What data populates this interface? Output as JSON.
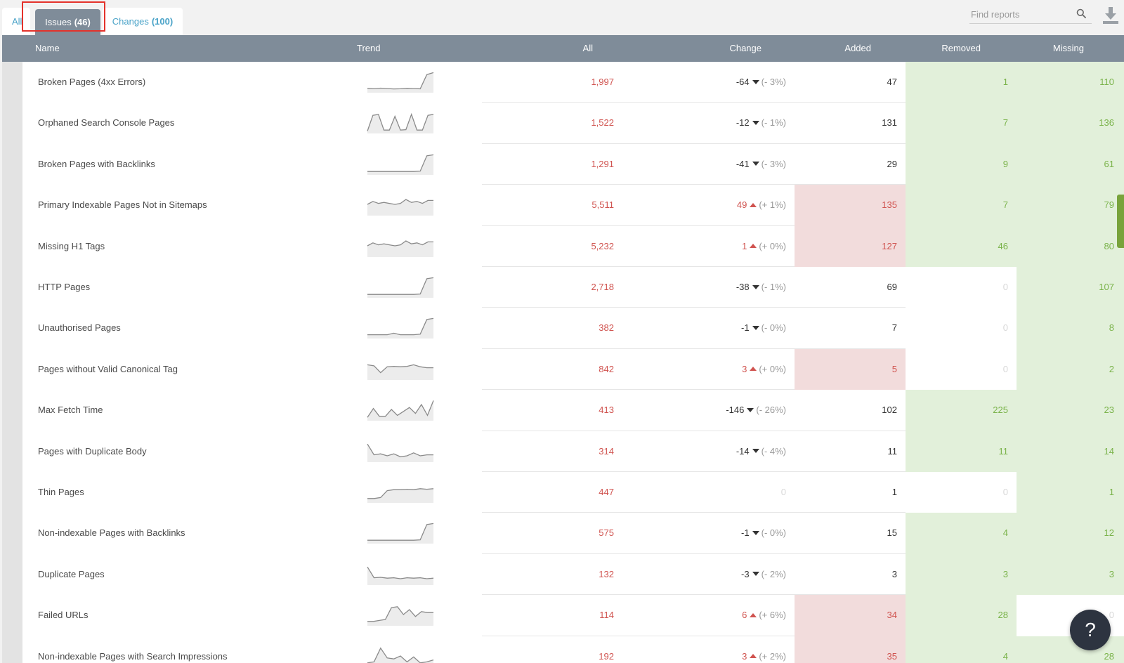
{
  "tabs": {
    "all_label": "All",
    "issues_label": "Issues",
    "issues_count": "(46)",
    "changes_label": "Changes",
    "changes_count": "(100)"
  },
  "search": {
    "placeholder": "Find reports",
    "icon": "search-icon"
  },
  "toolbar": {
    "download_icon": "download-icon"
  },
  "help": {
    "label": "?"
  },
  "colors": {
    "header_bg": "#7f8c99",
    "accent_blue": "#4aa3c8",
    "negative_red": "#d0534f",
    "red_highlight": "#f2dcdc",
    "positive_green": "#7ab34a",
    "green_highlight": "#e2f0da",
    "help_button": "#2d3440",
    "annotation_box": "#e4322b"
  },
  "table": {
    "columns": [
      "Name",
      "Trend",
      "All",
      "Change",
      "Added",
      "Removed",
      "Missing"
    ],
    "rows": [
      {
        "name": "Broken Pages (4xx Errors)",
        "all": "1,997",
        "change": "-64",
        "dir": "down",
        "pct": "(- 3%)",
        "added": "47",
        "removed": "1",
        "missing": "110",
        "hl_added": "none",
        "hl_removed": "green",
        "hl_missing": "green",
        "trend": [
          0.15,
          0.13,
          0.16,
          0.14,
          0.12,
          0.13,
          0.15,
          0.14,
          0.13,
          0.85,
          0.95
        ]
      },
      {
        "name": "Orphaned Search Console Pages",
        "all": "1,522",
        "change": "-12",
        "dir": "down",
        "pct": "(- 1%)",
        "added": "131",
        "removed": "7",
        "missing": "136",
        "hl_added": "none",
        "hl_removed": "green",
        "hl_missing": "green",
        "trend": [
          0.05,
          0.85,
          0.9,
          0.1,
          0.1,
          0.8,
          0.1,
          0.12,
          0.9,
          0.1,
          0.1,
          0.85,
          0.9
        ]
      },
      {
        "name": "Broken Pages with Backlinks",
        "all": "1,291",
        "change": "-41",
        "dir": "down",
        "pct": "(- 3%)",
        "added": "29",
        "removed": "9",
        "missing": "61",
        "hl_added": "none",
        "hl_removed": "green",
        "hl_missing": "green",
        "trend": [
          0.1,
          0.1,
          0.1,
          0.1,
          0.1,
          0.1,
          0.1,
          0.1,
          0.12,
          0.9,
          0.95
        ]
      },
      {
        "name": "Primary Indexable Pages Not in Sitemaps",
        "all": "5,511",
        "change": "49",
        "dir": "up",
        "pct": "(+ 1%)",
        "added": "135",
        "removed": "7",
        "missing": "79",
        "hl_added": "red",
        "hl_removed": "green",
        "hl_missing": "green",
        "trend": [
          0.5,
          0.65,
          0.55,
          0.6,
          0.55,
          0.5,
          0.55,
          0.75,
          0.6,
          0.65,
          0.55,
          0.7,
          0.7
        ]
      },
      {
        "name": "Missing H1 Tags",
        "all": "5,232",
        "change": "1",
        "dir": "up",
        "pct": "(+ 0%)",
        "added": "127",
        "removed": "46",
        "missing": "80",
        "hl_added": "red",
        "hl_removed": "green",
        "hl_missing": "green",
        "trend": [
          0.5,
          0.65,
          0.55,
          0.6,
          0.55,
          0.5,
          0.55,
          0.75,
          0.6,
          0.65,
          0.55,
          0.7,
          0.7
        ]
      },
      {
        "name": "HTTP Pages",
        "all": "2,718",
        "change": "-38",
        "dir": "down",
        "pct": "(- 1%)",
        "added": "69",
        "removed": "0",
        "missing": "107",
        "hl_added": "none",
        "hl_removed": "none",
        "hl_missing": "green",
        "trend": [
          0.1,
          0.1,
          0.1,
          0.1,
          0.1,
          0.1,
          0.1,
          0.1,
          0.12,
          0.9,
          0.95
        ]
      },
      {
        "name": "Unauthorised Pages",
        "all": "382",
        "change": "-1",
        "dir": "down",
        "pct": "(- 0%)",
        "added": "7",
        "removed": "0",
        "missing": "8",
        "hl_added": "none",
        "hl_removed": "none",
        "hl_missing": "green",
        "trend": [
          0.12,
          0.12,
          0.12,
          0.12,
          0.2,
          0.12,
          0.12,
          0.12,
          0.15,
          0.9,
          0.95
        ]
      },
      {
        "name": "Pages without Valid Canonical Tag",
        "all": "842",
        "change": "3",
        "dir": "up",
        "pct": "(+ 0%)",
        "added": "5",
        "removed": "0",
        "missing": "2",
        "hl_added": "red",
        "hl_removed": "none",
        "hl_missing": "green",
        "trend": [
          0.7,
          0.65,
          0.3,
          0.6,
          0.62,
          0.6,
          0.62,
          0.7,
          0.6,
          0.55,
          0.55
        ]
      },
      {
        "name": "Max Fetch Time",
        "all": "413",
        "change": "-146",
        "dir": "down",
        "pct": "(- 26%)",
        "added": "102",
        "removed": "225",
        "missing": "23",
        "hl_added": "none",
        "hl_removed": "green",
        "hl_missing": "green",
        "trend": [
          0.1,
          0.55,
          0.15,
          0.15,
          0.5,
          0.2,
          0.4,
          0.6,
          0.3,
          0.75,
          0.2,
          0.95
        ]
      },
      {
        "name": "Pages with Duplicate Body",
        "all": "314",
        "change": "-14",
        "dir": "down",
        "pct": "(- 4%)",
        "added": "11",
        "removed": "11",
        "missing": "14",
        "hl_added": "none",
        "hl_removed": "green",
        "hl_missing": "green",
        "trend": [
          0.85,
          0.3,
          0.35,
          0.25,
          0.35,
          0.2,
          0.25,
          0.4,
          0.25,
          0.3,
          0.3
        ]
      },
      {
        "name": "Thin Pages",
        "all": "447",
        "change": "0",
        "dir": "none",
        "pct": "",
        "added": "1",
        "removed": "0",
        "missing": "1",
        "hl_added": "none",
        "hl_removed": "none",
        "hl_missing": "green",
        "trend": [
          0.15,
          0.15,
          0.2,
          0.55,
          0.6,
          0.6,
          0.62,
          0.6,
          0.65,
          0.62,
          0.65
        ]
      },
      {
        "name": "Non-indexable Pages with Backlinks",
        "all": "575",
        "change": "-1",
        "dir": "down",
        "pct": "(- 0%)",
        "added": "15",
        "removed": "4",
        "missing": "12",
        "hl_added": "none",
        "hl_removed": "green",
        "hl_missing": "green",
        "trend": [
          0.1,
          0.1,
          0.1,
          0.1,
          0.1,
          0.1,
          0.1,
          0.1,
          0.12,
          0.9,
          0.95
        ]
      },
      {
        "name": "Duplicate Pages",
        "all": "132",
        "change": "-3",
        "dir": "down",
        "pct": "(- 2%)",
        "added": "3",
        "removed": "3",
        "missing": "3",
        "hl_added": "none",
        "hl_removed": "green",
        "hl_missing": "green",
        "trend": [
          0.85,
          0.3,
          0.32,
          0.28,
          0.3,
          0.25,
          0.3,
          0.28,
          0.3,
          0.25,
          0.28
        ]
      },
      {
        "name": "Failed URLs",
        "all": "114",
        "change": "6",
        "dir": "up",
        "pct": "(+ 6%)",
        "added": "34",
        "removed": "28",
        "missing": "0",
        "hl_added": "red",
        "hl_removed": "green",
        "hl_missing": "none",
        "trend": [
          0.15,
          0.15,
          0.2,
          0.25,
          0.85,
          0.9,
          0.5,
          0.75,
          0.4,
          0.65,
          0.6,
          0.6
        ]
      },
      {
        "name": "Non-indexable Pages with Search Impressions",
        "all": "192",
        "change": "3",
        "dir": "up",
        "pct": "(+ 2%)",
        "added": "35",
        "removed": "4",
        "missing": "28",
        "hl_added": "red",
        "hl_removed": "green",
        "hl_missing": "green",
        "trend": [
          0.15,
          0.2,
          0.9,
          0.4,
          0.35,
          0.5,
          0.2,
          0.45,
          0.15,
          0.2,
          0.3
        ]
      }
    ]
  }
}
